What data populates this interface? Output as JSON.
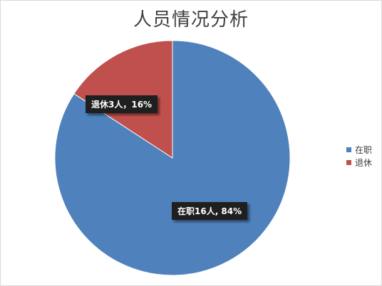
{
  "chart_data": {
    "type": "pie",
    "title": "人员情况分析",
    "categories": [
      "在职",
      "退休"
    ],
    "values": [
      16,
      3
    ],
    "percentages": [
      "84%",
      "16%"
    ],
    "data_labels": [
      "在职16人, 84%",
      "退休3人，16%"
    ],
    "colors": [
      "#4f81bd",
      "#c0504d"
    ],
    "legend_position": "right"
  }
}
